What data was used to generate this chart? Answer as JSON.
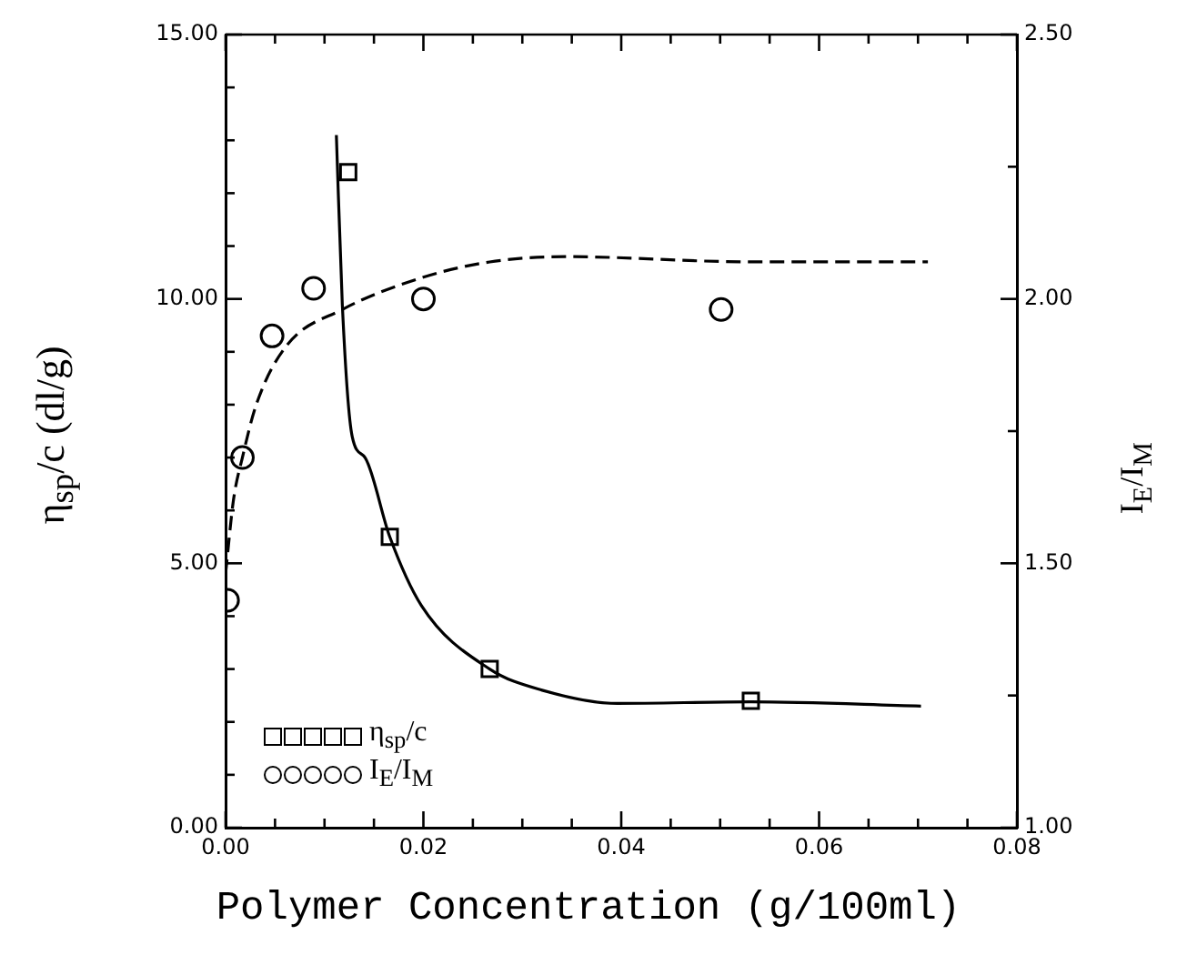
{
  "chart_data": {
    "type": "scatter",
    "xlabel": "Polymer Concentration (g/100ml)",
    "ylabel": "η$_{sp}$/c  (dl/g)",
    "y2label": "I$_{E}$/I$_{M}$",
    "xlim": [
      0,
      0.08
    ],
    "xticks": [
      {
        "value": 0,
        "label": "0.00"
      },
      {
        "value": 0.005,
        "label": null
      },
      {
        "value": 0.01,
        "label": null
      },
      {
        "value": 0.015,
        "label": null
      },
      {
        "value": 0.02,
        "label": "0.02"
      },
      {
        "value": 0.025,
        "label": null
      },
      {
        "value": 0.03,
        "label": null
      },
      {
        "value": 0.035,
        "label": null
      },
      {
        "value": 0.04,
        "label": "0.04"
      },
      {
        "value": 0.045,
        "label": null
      },
      {
        "value": 0.05,
        "label": null
      },
      {
        "value": 0.055,
        "label": null
      },
      {
        "value": 0.06,
        "label": "0.06"
      },
      {
        "value": 0.065,
        "label": null
      },
      {
        "value": 0.07,
        "label": null
      },
      {
        "value": 0.075,
        "label": null
      },
      {
        "value": 0.08,
        "label": "0.08"
      }
    ],
    "ylim": [
      0,
      15
    ],
    "yticks": [
      {
        "value": 0,
        "label": "0.00"
      },
      {
        "value": 1,
        "label": null
      },
      {
        "value": 2,
        "label": null
      },
      {
        "value": 3,
        "label": null
      },
      {
        "value": 4,
        "label": null
      },
      {
        "value": 5,
        "label": "5.00"
      },
      {
        "value": 6,
        "label": null
      },
      {
        "value": 7,
        "label": null
      },
      {
        "value": 8,
        "label": null
      },
      {
        "value": 9,
        "label": null
      },
      {
        "value": 10,
        "label": "10.00"
      },
      {
        "value": 11,
        "label": null
      },
      {
        "value": 12,
        "label": null
      },
      {
        "value": 13,
        "label": null
      },
      {
        "value": 14,
        "label": null
      },
      {
        "value": 15,
        "label": "15.00"
      }
    ],
    "y2lim": [
      1,
      2.5
    ],
    "y2ticks": [
      {
        "value": 1,
        "label": "1.00"
      },
      {
        "value": 1.25,
        "label": null
      },
      {
        "value": 1.5,
        "label": "1.50"
      },
      {
        "value": 1.75,
        "label": null
      },
      {
        "value": 2,
        "label": "2.00"
      },
      {
        "value": 2.25,
        "label": null
      },
      {
        "value": 2.5,
        "label": "2.50"
      }
    ],
    "grid": false,
    "legend": "bottom left",
    "series": [
      {
        "name": "η$_{sp}$/c",
        "type": "scatter",
        "marker": "square",
        "color": "#000000",
        "x": [
          0.0124,
          0.0166,
          0.0267,
          0.0531
        ],
        "values": [
          12.4,
          5.5,
          3.0,
          2.4
        ]
      },
      {
        "name": "I$_{E}$/I$_{M}$",
        "type": "scatter",
        "marker": "circle",
        "color": "#000000",
        "axis": "y2",
        "x": [
          0.0002,
          0.0017,
          0.0047,
          0.0089,
          0.02,
          0.0501
        ],
        "values": [
          1.43,
          1.7,
          1.93,
          2.02,
          2.0,
          1.98
        ]
      },
      {
        "type": "line",
        "marker": "none",
        "line_style": "solid",
        "color": "#000000",
        "x": [
          0.0112,
          0.0118,
          0.0128,
          0.0141,
          0.0166,
          0.0198,
          0.0267,
          0.032,
          0.0396,
          0.0531,
          0.0703
        ],
        "values": [
          13.1,
          9.9,
          7.4,
          7.0,
          5.5,
          4.2,
          3.0,
          2.6,
          2.35,
          2.38,
          2.3
        ]
      },
      {
        "type": "line",
        "marker": "none",
        "line_style": "dashed",
        "color": "#000000",
        "axis": "y2",
        "x": [
          0,
          0.0008,
          0.0017,
          0.0031,
          0.0061,
          0.0118,
          0.0198,
          0.0267,
          0.0343,
          0.0533,
          0.071
        ],
        "values": [
          1.48,
          1.62,
          1.7,
          1.8,
          1.91,
          1.98,
          2.04,
          2.07,
          2.08,
          2.07,
          2.07
        ]
      }
    ]
  }
}
